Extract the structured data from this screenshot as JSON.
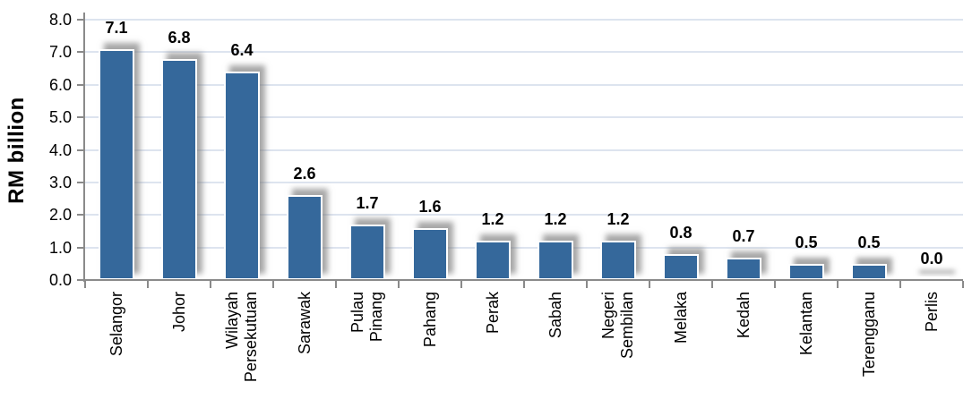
{
  "chart_data": {
    "type": "bar",
    "title": "",
    "xlabel": "",
    "ylabel": "RM billion",
    "ylim": [
      0,
      8
    ],
    "ytick_step": 1,
    "ytick_labels": [
      "0.0",
      "1.0",
      "2.0",
      "3.0",
      "4.0",
      "5.0",
      "6.0",
      "7.0",
      "8.0"
    ],
    "categories": [
      "Selangor",
      "Johor",
      "Wilayah Persekutuan",
      "Sarawak",
      "Pulau Pinang",
      "Pahang",
      "Perak",
      "Sabah",
      "Negeri Sembilan",
      "Melaka",
      "Kedah",
      "Kelantan",
      "Terengganu",
      "Perlis"
    ],
    "category_lines": [
      [
        "Selangor"
      ],
      [
        "Johor"
      ],
      [
        "Wilayah",
        "Persekutuan"
      ],
      [
        "Sarawak"
      ],
      [
        "Pulau",
        "Pinang"
      ],
      [
        "Pahang"
      ],
      [
        "Perak"
      ],
      [
        "Sabah"
      ],
      [
        "Negeri",
        "Sembilan"
      ],
      [
        "Melaka"
      ],
      [
        "Kedah"
      ],
      [
        "Kelantan"
      ],
      [
        "Terengganu"
      ],
      [
        "Perlis"
      ]
    ],
    "values": [
      7.1,
      6.8,
      6.4,
      2.6,
      1.7,
      1.6,
      1.2,
      1.2,
      1.2,
      0.8,
      0.7,
      0.5,
      0.5,
      0.0
    ],
    "value_labels": [
      "7.1",
      "6.8",
      "6.4",
      "2.6",
      "1.7",
      "1.6",
      "1.2",
      "1.2",
      "1.2",
      "0.8",
      "0.7",
      "0.5",
      "0.5",
      "0.0"
    ],
    "grid": true,
    "legend": false,
    "colors": {
      "bar": "#35689B",
      "bar_border": "#ffffff",
      "gridline": "#dde4ef",
      "axis": "#8a8a8a",
      "text": "#000000",
      "background": "#ffffff"
    }
  }
}
